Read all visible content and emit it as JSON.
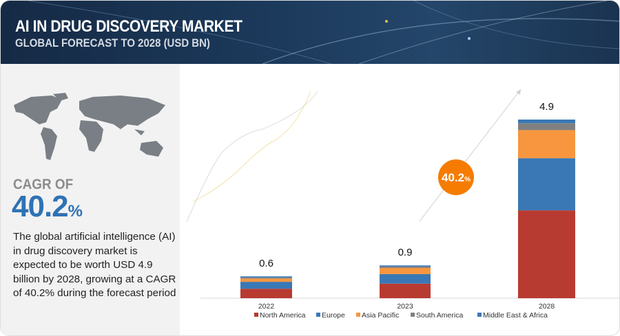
{
  "header": {
    "title": "AI IN DRUG DISCOVERY MARKET",
    "subtitle": "GLOBAL FORECAST TO 2028 (USD BN)"
  },
  "summary": {
    "cagr_label": "CAGR OF",
    "cagr_value": "40.2",
    "cagr_unit": "%",
    "description": "The global artificial intelligence (AI) in drug discovery market is expected to be worth USD  4.9 billion by 2028, growing at a CAGR of 40.2% during the forecast period"
  },
  "chart_data": {
    "type": "bar",
    "stacked": true,
    "categories": [
      "2022",
      "2023",
      "2028"
    ],
    "totals": [
      "0.6",
      "0.9",
      "4.9"
    ],
    "series": [
      {
        "name": "North America",
        "color": "#b83b32",
        "values": [
          0.26,
          0.4,
          2.41
        ]
      },
      {
        "name": "Europe",
        "color": "#3a78b5",
        "values": [
          0.19,
          0.26,
          1.43
        ]
      },
      {
        "name": "Asia Pacific",
        "color": "#f7963f",
        "values": [
          0.09,
          0.17,
          0.77
        ]
      },
      {
        "name": "South America",
        "color": "#808080",
        "values": [
          0.03,
          0.04,
          0.19
        ]
      },
      {
        "name": "Middle East & Africa",
        "color": "#3a78b5",
        "values": [
          0.03,
          0.03,
          0.1
        ]
      }
    ],
    "annotation": {
      "value": "40.2",
      "unit": "%",
      "color": "#f57c00"
    },
    "ylim": [
      0,
      4.9
    ],
    "grid": false,
    "legend": "bottom"
  }
}
